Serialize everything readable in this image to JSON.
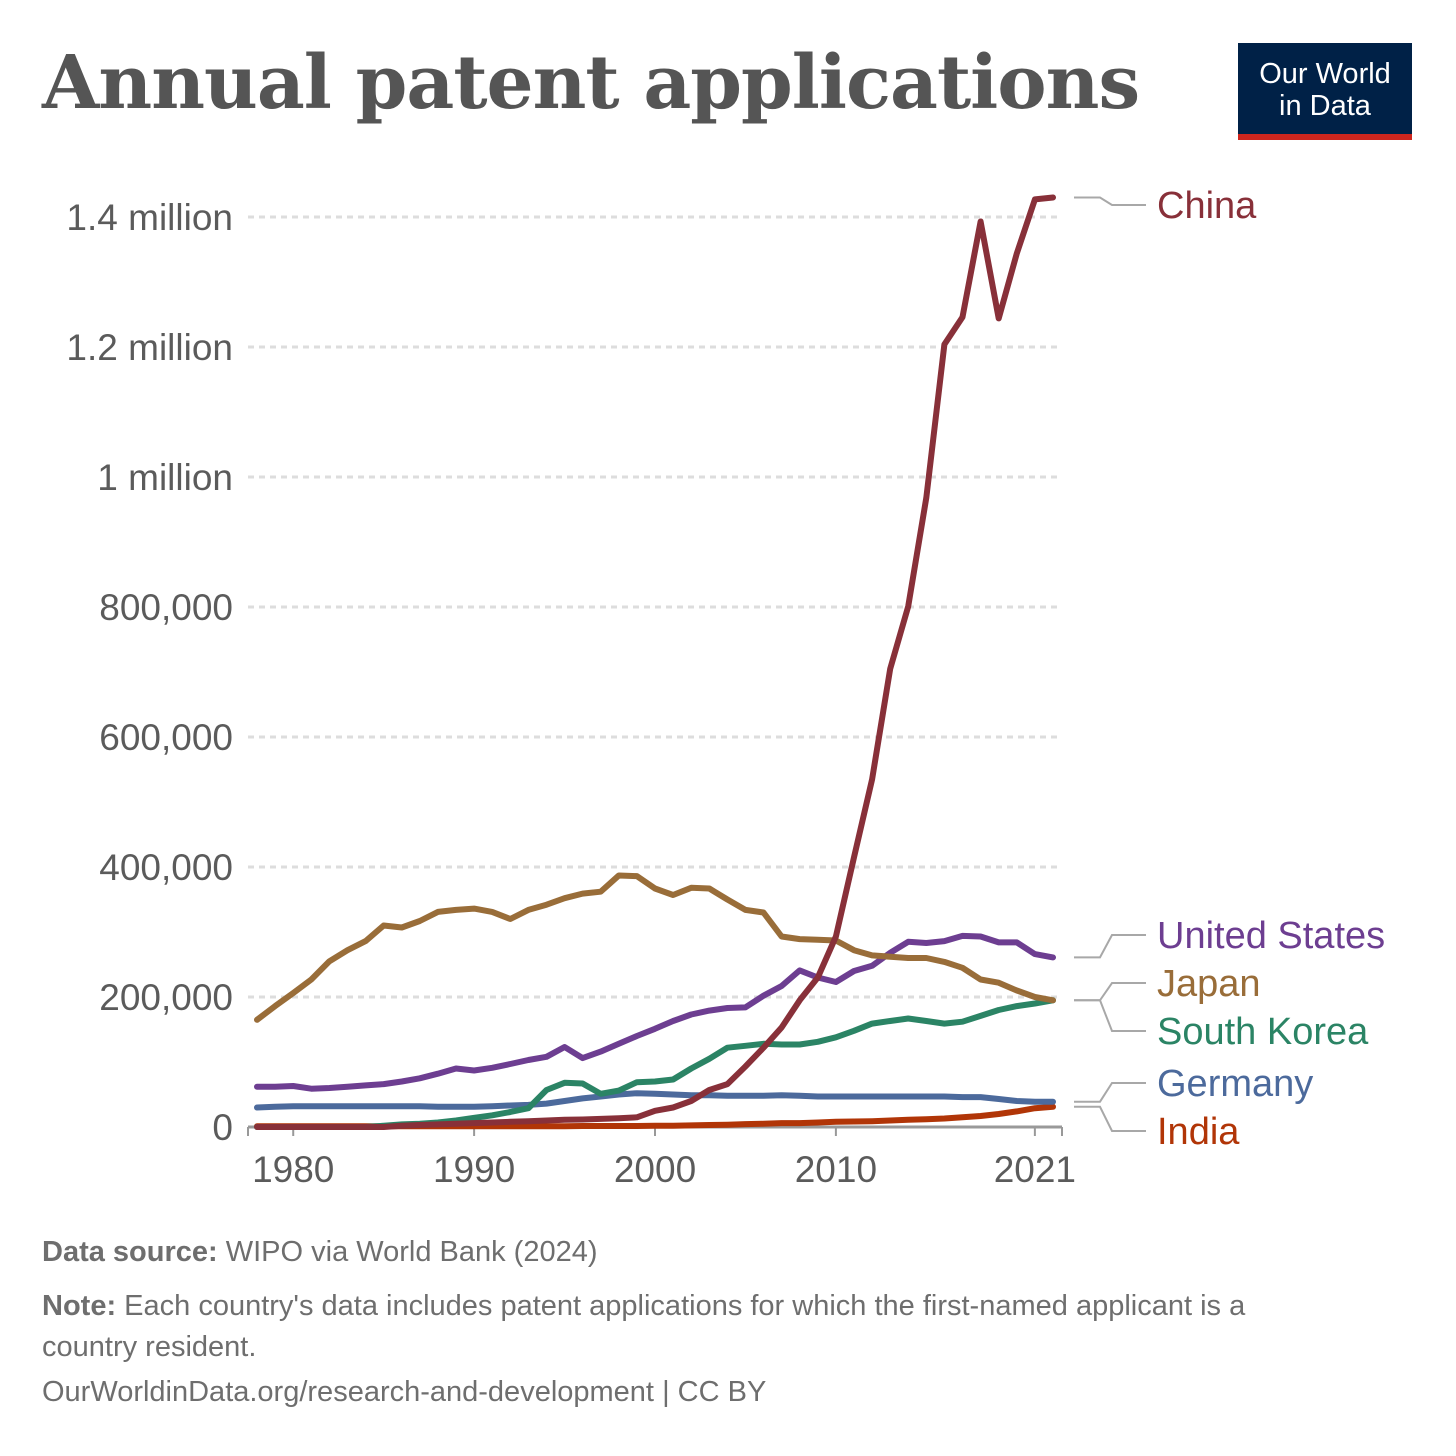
{
  "logo": {
    "line1": "Our World",
    "line2": "in Data"
  },
  "chart_data": {
    "type": "line",
    "title": "Annual patent applications",
    "xlabel": "",
    "ylabel": "",
    "xlim": [
      1977.5,
      2022.5
    ],
    "ylim": [
      0,
      1400000
    ],
    "x_ticks": [
      {
        "value": 1980,
        "label": "1980"
      },
      {
        "value": 1990,
        "label": "1990"
      },
      {
        "value": 2000,
        "label": "2000"
      },
      {
        "value": 2010,
        "label": "2010"
      },
      {
        "value": 2021,
        "label": "2021"
      }
    ],
    "y_ticks": [
      {
        "value": 0,
        "label": "0"
      },
      {
        "value": 200000,
        "label": "200,000"
      },
      {
        "value": 400000,
        "label": "400,000"
      },
      {
        "value": 600000,
        "label": "600,000"
      },
      {
        "value": 800000,
        "label": "800,000"
      },
      {
        "value": 1000000,
        "label": "1 million"
      },
      {
        "value": 1200000,
        "label": "1.2 million"
      },
      {
        "value": 1400000,
        "label": "1.4 million"
      }
    ],
    "grid": true,
    "legend": "right (direct labels at line ends)",
    "x": [
      1978,
      1979,
      1980,
      1981,
      1982,
      1983,
      1984,
      1985,
      1986,
      1987,
      1988,
      1989,
      1990,
      1991,
      1992,
      1993,
      1994,
      1995,
      1996,
      1997,
      1998,
      1999,
      2000,
      2001,
      2002,
      2003,
      2004,
      2005,
      2006,
      2007,
      2008,
      2009,
      2010,
      2011,
      2012,
      2013,
      2014,
      2015,
      2016,
      2017,
      2018,
      2019,
      2020,
      2021,
      2022
    ],
    "series": [
      {
        "name": "China",
        "color": "#883039",
        "values": [
          0,
          0,
          0,
          0,
          0,
          0,
          0,
          0,
          2000,
          3000,
          4000,
          5000,
          6000,
          7000,
          8000,
          9000,
          10000,
          11000,
          11500,
          12500,
          13500,
          15000,
          25000,
          30000,
          40000,
          57000,
          66000,
          93000,
          122000,
          153000,
          195000,
          230000,
          293000,
          415000,
          535000,
          705000,
          801000,
          968000,
          1204000,
          1246000,
          1393000,
          1244000,
          1344000,
          1427000,
          1430000
        ]
      },
      {
        "name": "United States",
        "color": "#6d3e91",
        "values": [
          62000,
          62000,
          63000,
          59000,
          60000,
          62000,
          64000,
          66000,
          70000,
          75000,
          82000,
          90000,
          87000,
          91000,
          97000,
          103000,
          108000,
          123000,
          106000,
          116000,
          128000,
          140000,
          151000,
          163000,
          173000,
          179000,
          183000,
          184000,
          202000,
          217000,
          241000,
          230000,
          223000,
          240000,
          248000,
          268000,
          285000,
          283000,
          286000,
          294000,
          293000,
          284000,
          284000,
          266000,
          261000
        ]
      },
      {
        "name": "Japan",
        "color": "#996d39",
        "values": [
          165000,
          186000,
          206000,
          227000,
          255000,
          272000,
          286000,
          310000,
          307000,
          317000,
          331000,
          334000,
          336000,
          331000,
          320000,
          334000,
          342000,
          352000,
          359000,
          362000,
          387000,
          386000,
          367000,
          357000,
          368000,
          367000,
          350000,
          334000,
          330000,
          293000,
          289000,
          288000,
          287000,
          272000,
          264000,
          262000,
          260000,
          260000,
          254000,
          245000,
          227000,
          222000,
          210000,
          200000,
          195000
        ]
      },
      {
        "name": "South Korea",
        "color": "#2b8465",
        "values": [
          0,
          0,
          0,
          0,
          0,
          0,
          0,
          2000,
          4000,
          5000,
          7000,
          10000,
          14000,
          18000,
          23000,
          29000,
          57000,
          68000,
          67000,
          51000,
          56000,
          69000,
          70000,
          73000,
          90000,
          105000,
          122000,
          125000,
          128000,
          127000,
          127000,
          131000,
          138000,
          148000,
          159000,
          163000,
          167000,
          163000,
          159000,
          162000,
          171000,
          180000,
          186000,
          190000,
          195000
        ]
      },
      {
        "name": "Germany",
        "color": "#4c6a9c",
        "values": [
          30000,
          31000,
          32000,
          32000,
          32000,
          32000,
          32000,
          32000,
          32000,
          32000,
          31000,
          31000,
          31000,
          32000,
          33000,
          34000,
          36000,
          40000,
          44000,
          47000,
          50000,
          52000,
          51000,
          50000,
          49000,
          49000,
          48000,
          48000,
          48000,
          49000,
          48000,
          47000,
          47000,
          47000,
          47000,
          47000,
          47000,
          47000,
          47000,
          46000,
          46000,
          43000,
          40000,
          39000,
          39000
        ]
      },
      {
        "name": "India",
        "color": "#b13507",
        "values": [
          1000,
          1000,
          1000,
          1000,
          1000,
          1000,
          1000,
          1000,
          1000,
          1000,
          1000,
          1000,
          1000,
          1000,
          1000,
          1000,
          1000,
          1000,
          1500,
          1500,
          1500,
          1500,
          2000,
          2000,
          2500,
          3000,
          3500,
          4500,
          5000,
          6000,
          6000,
          7000,
          8000,
          8500,
          9000,
          10000,
          11000,
          12000,
          13000,
          15000,
          17000,
          20000,
          24000,
          29000,
          31000
        ]
      }
    ],
    "labels_right": [
      {
        "name": "China",
        "color": "#883039"
      },
      {
        "name": "United States",
        "color": "#6d3e91"
      },
      {
        "name": "Japan",
        "color": "#996d39"
      },
      {
        "name": "South Korea",
        "color": "#2b8465"
      },
      {
        "name": "Germany",
        "color": "#4c6a9c"
      },
      {
        "name": "India",
        "color": "#b13507"
      }
    ]
  },
  "footer": {
    "source_label": "Data source:",
    "source_text": "WIPO via World Bank (2024)",
    "note_label": "Note:",
    "note_text": "Each country's data includes patent applications for which the first-named applicant is a country resident.",
    "url": "OurWorldinData.org/research-and-development",
    "license": "| CC BY"
  }
}
